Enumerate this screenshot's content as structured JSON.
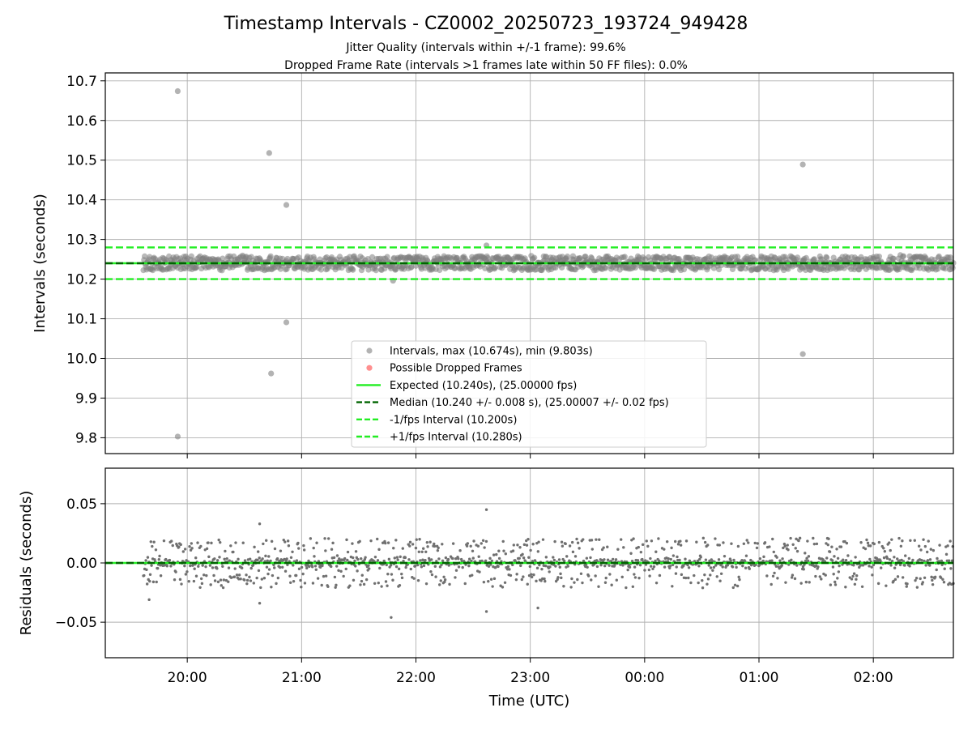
{
  "title": "Timestamp Intervals - CZ0002_20250723_193724_949428",
  "subtitle_1": "Jitter Quality (intervals within +/-1 frame): 99.6%",
  "subtitle_2": "Dropped Frame Rate (intervals >1 frames late within 50 FF files): 0.0%",
  "chart_data": [
    {
      "type": "scatter",
      "ylabel": "Intervals (seconds)",
      "ylim": [
        9.76,
        10.72
      ],
      "yticks": [
        9.8,
        9.9,
        10.0,
        10.1,
        10.2,
        10.3,
        10.4,
        10.5,
        10.6,
        10.7
      ],
      "ytick_labels": [
        "9.8",
        "9.9",
        "10.0",
        "10.1",
        "10.2",
        "10.3",
        "10.4",
        "10.5",
        "10.6",
        "10.7"
      ],
      "grid": true,
      "legend_position": "lower-center",
      "reference_lines": [
        {
          "name": "Expected (10.240s), (25.00000 fps)",
          "y": 10.24,
          "style": "solid",
          "color": "#22ee22"
        },
        {
          "name": "Median (10.240 +/- 0.008 s), (25.00007 +/- 0.02 fps)",
          "y": 10.24,
          "style": "dashed",
          "color": "#006400"
        },
        {
          "name": "-1/fps Interval (10.200s)",
          "y": 10.2,
          "style": "dashed",
          "color": "#22ee22"
        },
        {
          "name": "+1/fps Interval (10.280s)",
          "y": 10.28,
          "style": "dashed",
          "color": "#22ee22"
        }
      ],
      "series": [
        {
          "name": "Intervals, max (10.674s), min (9.803s)",
          "color": "#808080",
          "notable_points": [
            {
              "x": "19:55",
              "y": 10.674
            },
            {
              "x": "19:55",
              "y": 9.803
            },
            {
              "x": "20:43",
              "y": 10.518
            },
            {
              "x": "20:44",
              "y": 9.962
            },
            {
              "x": "20:52",
              "y": 10.387
            },
            {
              "x": "20:52",
              "y": 10.091
            },
            {
              "x": "21:48",
              "y": 10.196
            },
            {
              "x": "22:37",
              "y": 10.285
            },
            {
              "x": "01:23",
              "y": 10.489
            },
            {
              "x": "01:23",
              "y": 10.011
            }
          ],
          "bulk": {
            "x_start": "19:37",
            "x_end": "02:42",
            "center": 10.24,
            "spread": 0.02
          }
        },
        {
          "name": "Possible Dropped Frames",
          "color": "#ff4444",
          "points": []
        }
      ]
    },
    {
      "type": "scatter",
      "ylabel": "Residuals (seconds)",
      "xlabel": "Time (UTC)",
      "ylim": [
        -0.08,
        0.08
      ],
      "yticks": [
        -0.05,
        0.0,
        0.05
      ],
      "ytick_labels": [
        "−0.05",
        "0.00",
        "0.05"
      ],
      "xlim": [
        "19:17",
        "02:42"
      ],
      "xticks": [
        "20:00",
        "21:00",
        "22:00",
        "23:00",
        "00:00",
        "01:00",
        "02:00"
      ],
      "grid": true,
      "reference_lines": [
        {
          "y": 0.0,
          "style": "solid",
          "color": "#22ee22"
        },
        {
          "y": 0.0,
          "style": "dashed",
          "color": "#006400"
        }
      ],
      "series": [
        {
          "color": "#707070",
          "notable_points": [
            {
              "x": "19:40",
              "y": -0.031
            },
            {
              "x": "20:38",
              "y": 0.033
            },
            {
              "x": "20:38",
              "y": -0.034
            },
            {
              "x": "21:47",
              "y": -0.046
            },
            {
              "x": "22:37",
              "y": 0.045
            },
            {
              "x": "22:37",
              "y": -0.041
            },
            {
              "x": "23:04",
              "y": -0.038
            }
          ],
          "bulk": {
            "x_start": "19:37",
            "x_end": "02:42",
            "center": 0.0,
            "spread": 0.02
          }
        }
      ]
    }
  ]
}
